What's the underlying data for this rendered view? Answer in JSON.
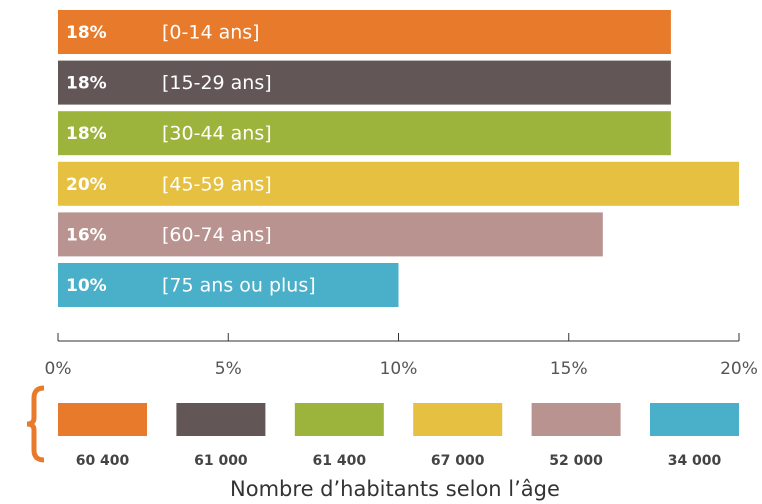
{
  "chart_data": {
    "type": "bar",
    "orientation": "horizontal",
    "categories": [
      "[0-14 ans]",
      "[15-29 ans]",
      "[30-44 ans]",
      "[45-59 ans]",
      "[60-74 ans]",
      "[75 ans ou plus]"
    ],
    "values": [
      18,
      18,
      18,
      20,
      16,
      10
    ],
    "value_labels": [
      "18%",
      "18%",
      "18%",
      "20%",
      "16%",
      "10%"
    ],
    "colors": [
      "#e87b2b",
      "#625656",
      "#9db43c",
      "#e6c040",
      "#b99390",
      "#4aafc8"
    ],
    "xlim": [
      0,
      20
    ],
    "xticks": [
      {
        "value": 0,
        "label": "0%"
      },
      {
        "value": 5,
        "label": "5%"
      },
      {
        "value": 10,
        "label": "10%"
      },
      {
        "value": 15,
        "label": "15%"
      },
      {
        "value": 20,
        "label": "20%"
      }
    ],
    "counts": [
      60400,
      61000,
      61400,
      67000,
      52000,
      34000
    ],
    "count_labels": [
      "60 400",
      "61 000",
      "61 400",
      "67 000",
      "52 000",
      "34 000"
    ],
    "caption": "Nombre d’habitants selon l’âge"
  }
}
